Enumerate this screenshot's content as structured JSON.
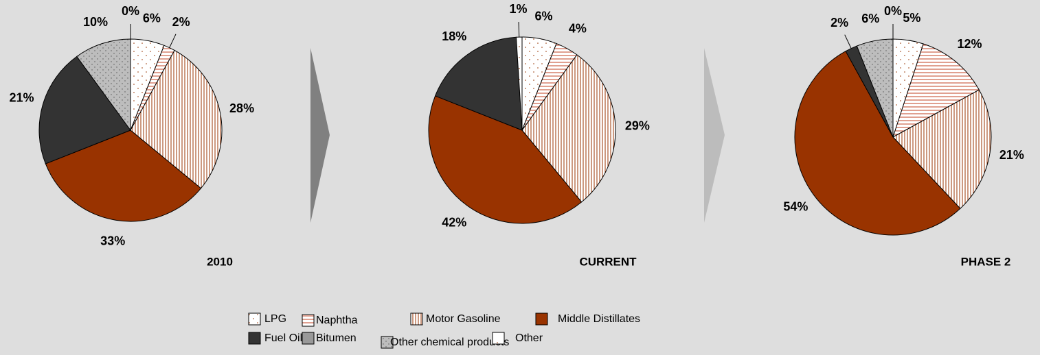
{
  "chart_data": [
    {
      "type": "pie",
      "title": "2010",
      "categories": [
        "LPG",
        "Naphtha",
        "Motor Gasoline",
        "Middle Distillates",
        "Fuel Oil",
        "Other chemical products",
        "Other"
      ],
      "values": [
        6,
        2,
        28,
        33,
        21,
        10,
        0
      ],
      "value_labels": [
        "6%",
        "2%",
        "28%",
        "33%",
        "21%",
        "10%",
        "0%"
      ]
    },
    {
      "type": "pie",
      "title": "CURRENT",
      "categories": [
        "LPG",
        "Naphtha",
        "Motor Gasoline",
        "Middle Distillates",
        "Fuel Oil",
        "Other"
      ],
      "values": [
        6,
        4,
        29,
        42,
        18,
        1
      ],
      "value_labels": [
        "6%",
        "4%",
        "29%",
        "42%",
        "18%",
        "1%"
      ]
    },
    {
      "type": "pie",
      "title": "PHASE 2",
      "categories": [
        "LPG",
        "Naphtha",
        "Motor Gasoline",
        "Middle Distillates",
        "Fuel Oil",
        "Other chemical products",
        "Other"
      ],
      "values": [
        5,
        12,
        21,
        54,
        2,
        6,
        0
      ],
      "value_labels": [
        "5%",
        "12%",
        "21%",
        "54%",
        "2%",
        "6%",
        "0%"
      ]
    }
  ],
  "legend": {
    "names": [
      "LPG",
      "Naphtha",
      "Motor Gasoline",
      "Middle Distillates",
      "Fuel Oil",
      "Bitumen",
      "Other chemical products",
      "Other"
    ],
    "fills": [
      "url(#p-lpg)",
      "url(#p-naph)",
      "url(#p-mg)",
      "#993300",
      "#333333",
      "#999999",
      "url(#p-oc)",
      "url(#p-other)"
    ]
  }
}
